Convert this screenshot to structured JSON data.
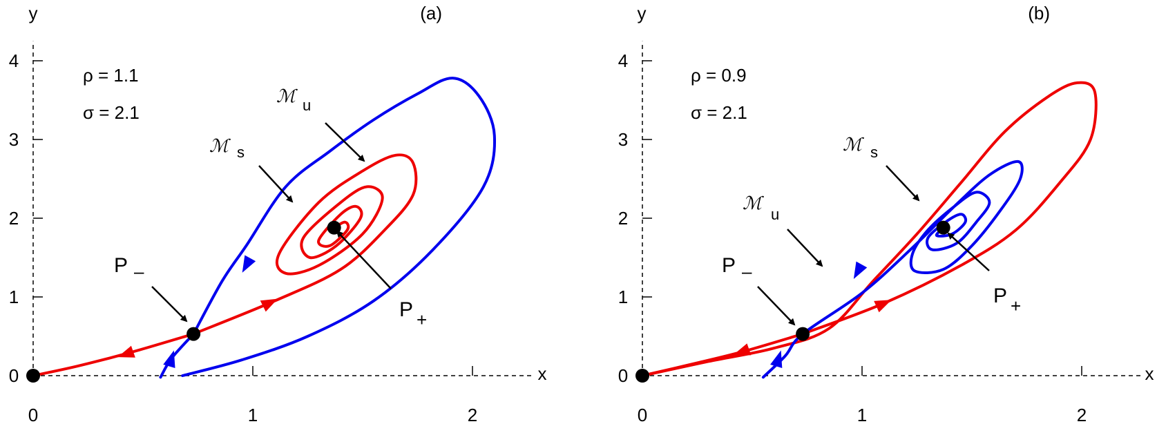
{
  "chart_data": [
    {
      "type": "line",
      "panel_label": "(a)",
      "xlabel": "x",
      "ylabel": "y",
      "xticks": [
        "0",
        "1",
        "2"
      ],
      "yticks": [
        "0",
        "1",
        "2",
        "3",
        "4"
      ],
      "xlim": [
        0,
        2.3
      ],
      "ylim": [
        0,
        4.3
      ],
      "params": {
        "rho": "ρ  = 1.1",
        "sigma": "σ  = 2.1"
      },
      "colors": {
        "stable": "#0000ee",
        "unstable": "#ee0000"
      },
      "points": [
        {
          "name": "origin",
          "label": "",
          "x": 0,
          "y": 0
        },
        {
          "name": "P-minus",
          "label": "P",
          "sub": "–",
          "x": 0.73,
          "y": 0.53
        },
        {
          "name": "P-plus",
          "label": "P",
          "sub": "+",
          "x": 1.37,
          "y": 1.88
        }
      ],
      "manifold_labels": {
        "stable": "s",
        "unstable": "u",
        "symbol": "ℳ"
      },
      "curves": [
        {
          "name": "stable-manifold-loop",
          "color": "#0000ee",
          "points": [
            [
              0.68,
              0.0
            ],
            [
              0.95,
              0.2
            ],
            [
              1.25,
              0.5
            ],
            [
              1.55,
              0.95
            ],
            [
              1.82,
              1.6
            ],
            [
              2.05,
              2.4
            ],
            [
              2.1,
              3.05
            ],
            [
              2.03,
              3.55
            ],
            [
              1.91,
              3.78
            ],
            [
              1.75,
              3.58
            ],
            [
              1.55,
              3.25
            ],
            [
              1.35,
              2.85
            ],
            [
              1.15,
              2.4
            ],
            [
              0.97,
              1.65
            ],
            [
              0.86,
              1.2
            ],
            [
              0.73,
              0.53
            ]
          ]
        },
        {
          "name": "stable-manifold-lower",
          "color": "#0000ee",
          "points": [
            [
              0.58,
              -0.02
            ],
            [
              0.63,
              0.22
            ],
            [
              0.73,
              0.53
            ]
          ]
        },
        {
          "name": "unstable-manifold-left",
          "color": "#ee0000",
          "points": [
            [
              0.73,
              0.53
            ],
            [
              0.45,
              0.3
            ],
            [
              0.2,
              0.12
            ],
            [
              0.0,
              0.0
            ]
          ]
        },
        {
          "name": "unstable-manifold-spiral",
          "color": "#ee0000",
          "points": [
            [
              0.73,
              0.53
            ],
            [
              1.1,
              0.95
            ],
            [
              1.4,
              1.35
            ],
            [
              1.6,
              1.85
            ],
            [
              1.73,
              2.3
            ],
            [
              1.73,
              2.7
            ],
            [
              1.65,
              2.8
            ],
            [
              1.5,
              2.6
            ],
            [
              1.3,
              2.2
            ],
            [
              1.12,
              1.55
            ],
            [
              1.15,
              1.3
            ],
            [
              1.3,
              1.4
            ],
            [
              1.5,
              1.8
            ],
            [
              1.59,
              2.25
            ],
            [
              1.52,
              2.4
            ],
            [
              1.4,
              2.2
            ],
            [
              1.23,
              1.75
            ],
            [
              1.26,
              1.5
            ],
            [
              1.38,
              1.65
            ],
            [
              1.49,
              2.0
            ],
            [
              1.47,
              2.15
            ],
            [
              1.4,
              2.05
            ],
            [
              1.3,
              1.72
            ],
            [
              1.35,
              1.65
            ],
            [
              1.43,
              1.85
            ],
            [
              1.42,
              1.95
            ],
            [
              1.37,
              1.88
            ]
          ]
        }
      ],
      "arrows": [
        {
          "color": "#0000ee",
          "at": [
            0.63,
            0.22
          ],
          "dir": [
            0.3,
            1.0
          ]
        },
        {
          "color": "#0000ee",
          "at": [
            0.97,
            1.4
          ],
          "dir": [
            -0.55,
            -1.0
          ]
        },
        {
          "color": "#ee0000",
          "at": [
            1.08,
            0.93
          ],
          "dir": [
            1.0,
            0.5
          ]
        },
        {
          "color": "#ee0000",
          "at": [
            0.42,
            0.27
          ],
          "dir": [
            -1.0,
            -0.35
          ]
        }
      ]
    },
    {
      "type": "line",
      "panel_label": "(b)",
      "xlabel": "x",
      "ylabel": "y",
      "xticks": [
        "0",
        "1",
        "2"
      ],
      "yticks": [
        "0",
        "1",
        "2",
        "3",
        "4"
      ],
      "xlim": [
        0,
        2.3
      ],
      "ylim": [
        0,
        4.3
      ],
      "params": {
        "rho": "ρ  = 0.9",
        "sigma": "σ  = 2.1"
      },
      "colors": {
        "stable": "#0000ee",
        "unstable": "#ee0000"
      },
      "points": [
        {
          "name": "origin",
          "label": "",
          "x": 0,
          "y": 0
        },
        {
          "name": "P-minus",
          "label": "P",
          "sub": "–",
          "x": 0.73,
          "y": 0.53
        },
        {
          "name": "P-plus",
          "label": "P",
          "sub": "+",
          "x": 1.37,
          "y": 1.88
        }
      ],
      "manifold_labels": {
        "stable": "s",
        "unstable": "u",
        "symbol": "ℳ"
      },
      "curves": [
        {
          "name": "unstable-manifold-loop",
          "color": "#ee0000",
          "points": [
            [
              0.0,
              0.0
            ],
            [
              0.3,
              0.18
            ],
            [
              0.6,
              0.35
            ],
            [
              0.85,
              0.6
            ],
            [
              1.05,
              1.2
            ],
            [
              1.25,
              1.8
            ],
            [
              1.45,
              2.45
            ],
            [
              1.65,
              3.1
            ],
            [
              1.85,
              3.55
            ],
            [
              1.98,
              3.72
            ],
            [
              2.06,
              3.6
            ],
            [
              2.04,
              3.0
            ],
            [
              1.9,
              2.45
            ],
            [
              1.7,
              1.85
            ],
            [
              1.45,
              1.4
            ],
            [
              1.1,
              0.92
            ],
            [
              0.73,
              0.53
            ]
          ]
        },
        {
          "name": "unstable-manifold-left",
          "color": "#ee0000",
          "points": [
            [
              0.73,
              0.53
            ],
            [
              0.45,
              0.3
            ],
            [
              0.2,
              0.13
            ],
            [
              0.0,
              0.0
            ]
          ]
        },
        {
          "name": "stable-manifold-spiral",
          "color": "#0000ee",
          "points": [
            [
              0.55,
              -0.02
            ],
            [
              0.65,
              0.25
            ],
            [
              0.73,
              0.53
            ],
            [
              1.0,
              1.05
            ],
            [
              1.22,
              1.6
            ],
            [
              1.42,
              2.15
            ],
            [
              1.58,
              2.55
            ],
            [
              1.71,
              2.72
            ],
            [
              1.72,
              2.5
            ],
            [
              1.63,
              2.1
            ],
            [
              1.5,
              1.65
            ],
            [
              1.37,
              1.35
            ],
            [
              1.24,
              1.33
            ],
            [
              1.23,
              1.55
            ],
            [
              1.3,
              1.85
            ],
            [
              1.42,
              2.15
            ],
            [
              1.52,
              2.33
            ],
            [
              1.58,
              2.2
            ],
            [
              1.52,
              1.95
            ],
            [
              1.43,
              1.68
            ],
            [
              1.32,
              1.6
            ],
            [
              1.3,
              1.75
            ],
            [
              1.38,
              1.95
            ],
            [
              1.45,
              2.05
            ],
            [
              1.47,
              1.95
            ],
            [
              1.41,
              1.8
            ],
            [
              1.34,
              1.78
            ],
            [
              1.37,
              1.88
            ]
          ]
        }
      ],
      "arrows": [
        {
          "color": "#0000ee",
          "at": [
            0.62,
            0.22
          ],
          "dir": [
            0.3,
            1.0
          ]
        },
        {
          "color": "#0000ee",
          "at": [
            0.98,
            1.32
          ],
          "dir": [
            -0.55,
            -1.0
          ]
        },
        {
          "color": "#ee0000",
          "at": [
            1.1,
            0.92
          ],
          "dir": [
            1.0,
            0.45
          ]
        },
        {
          "color": "#ee0000",
          "at": [
            0.45,
            0.3
          ],
          "dir": [
            -1.0,
            -0.35
          ]
        }
      ]
    }
  ]
}
